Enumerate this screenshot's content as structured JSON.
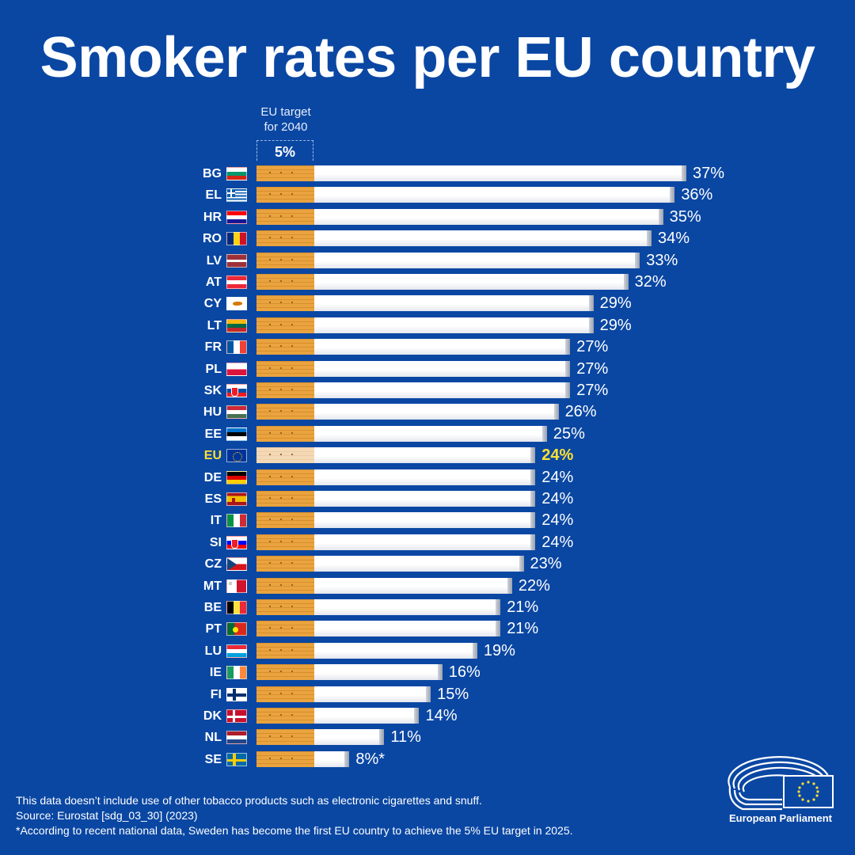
{
  "title": "Smoker rates per EU country",
  "target": {
    "label_line1": "EU target",
    "label_line2": "for 2040",
    "value_label": "5%",
    "value": 5
  },
  "chart_data": {
    "type": "bar",
    "orientation": "horizontal",
    "title": "Smoker rates per EU country",
    "xlim": [
      0,
      37
    ],
    "reference_line": {
      "label": "EU target for 2040",
      "value": 5
    },
    "categories": [
      "BG",
      "EL",
      "HR",
      "RO",
      "LV",
      "AT",
      "CY",
      "LT",
      "FR",
      "PL",
      "SK",
      "HU",
      "EE",
      "EU",
      "DE",
      "ES",
      "IT",
      "SI",
      "CZ",
      "MT",
      "BE",
      "PT",
      "LU",
      "IE",
      "FI",
      "DK",
      "NL",
      "SE"
    ],
    "values": [
      37,
      36,
      35,
      34,
      33,
      32,
      29,
      29,
      27,
      27,
      27,
      26,
      25,
      24,
      24,
      24,
      24,
      24,
      23,
      22,
      21,
      21,
      19,
      16,
      15,
      14,
      11,
      8
    ],
    "value_labels": [
      "37%",
      "36%",
      "35%",
      "34%",
      "33%",
      "32%",
      "29%",
      "29%",
      "27%",
      "27%",
      "27%",
      "26%",
      "25%",
      "24%",
      "24%",
      "24%",
      "24%",
      "24%",
      "23%",
      "22%",
      "21%",
      "21%",
      "19%",
      "16%",
      "15%",
      "14%",
      "11%",
      "8%*"
    ],
    "highlight": "EU",
    "colors": {
      "background": "#0a47a3",
      "filter": "#e9a33f",
      "paper": "#ffffff",
      "highlight_text": "#ffe033"
    }
  },
  "flags": {
    "BG": "bulgaria-flag",
    "EL": "greece-flag",
    "HR": "croatia-flag",
    "RO": "romania-flag",
    "LV": "latvia-flag",
    "AT": "austria-flag",
    "CY": "cyprus-flag",
    "LT": "lithuania-flag",
    "FR": "france-flag",
    "PL": "poland-flag",
    "SK": "slovakia-flag",
    "HU": "hungary-flag",
    "EE": "estonia-flag",
    "EU": "eu-flag",
    "DE": "germany-flag",
    "ES": "spain-flag",
    "IT": "italy-flag",
    "SI": "slovenia-flag",
    "CZ": "czechia-flag",
    "MT": "malta-flag",
    "BE": "belgium-flag",
    "PT": "portugal-flag",
    "LU": "luxembourg-flag",
    "IE": "ireland-flag",
    "FI": "finland-flag",
    "DK": "denmark-flag",
    "NL": "netherlands-flag",
    "SE": "sweden-flag"
  },
  "footnotes": {
    "line1": "This data doesn’t include use of other tobacco products such as electronic cigarettes and snuff.",
    "line2": "Source: Eurostat [sdg_03_30] (2023)",
    "line3": "*According to recent national data, Sweden has become the first EU country to achieve the 5% EU target in 2025."
  },
  "logo": {
    "name": "European Parliament",
    "icon": "european-parliament-logo"
  }
}
